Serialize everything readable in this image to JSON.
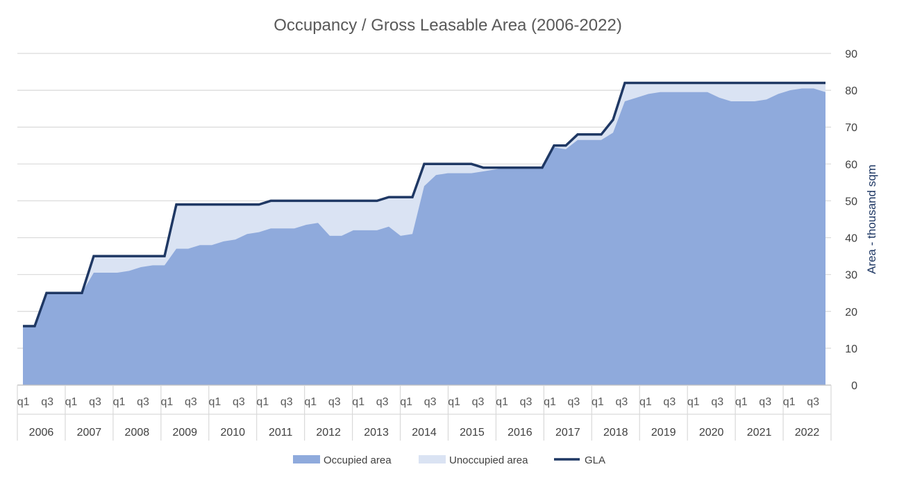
{
  "chart_data": {
    "type": "area",
    "title": "Occupancy / Gross Leasable Area (2006-2022)",
    "ylabel": "Area - thousand sqm",
    "xlabel": "",
    "ylim": [
      0,
      90
    ],
    "yticks": [
      0,
      10,
      20,
      30,
      40,
      50,
      60,
      70,
      80,
      90
    ],
    "y_axis_side": "right",
    "grid": true,
    "legend_position": "bottom",
    "years": [
      "2006",
      "2007",
      "2008",
      "2009",
      "2010",
      "2011",
      "2012",
      "2013",
      "2014",
      "2015",
      "2016",
      "2017",
      "2018",
      "2019",
      "2020",
      "2021",
      "2022"
    ],
    "quarter_tick_labels": [
      "q1",
      "q3"
    ],
    "quarters_per_year": 4,
    "series": [
      {
        "name": "Occupied area",
        "kind": "area",
        "color": "#8faadc",
        "values": [
          16,
          16,
          25,
          25,
          25,
          25,
          30.5,
          30.5,
          30.5,
          31,
          32,
          32.5,
          32.5,
          37,
          37,
          38,
          38,
          39,
          39.5,
          41,
          41.5,
          42.5,
          42.5,
          42.5,
          43.5,
          44,
          40.5,
          40.5,
          42,
          42,
          42,
          43,
          40.5,
          41,
          54,
          57,
          57.5,
          57.5,
          57.5,
          58,
          58.5,
          59,
          59,
          59,
          59,
          64.5,
          64,
          66.5,
          66.5,
          66.5,
          68.5,
          77,
          78,
          79,
          79.5,
          79.5,
          79.5,
          79.5,
          79.5,
          78,
          77,
          77,
          77,
          77.5,
          79,
          80,
          80.5,
          80.5,
          79.5
        ]
      },
      {
        "name": "Unoccupied area",
        "kind": "area",
        "color": "#dae3f3"
      },
      {
        "name": "GLA",
        "kind": "line",
        "color": "#1f3864",
        "values": [
          16,
          16,
          25,
          25,
          25,
          25,
          35,
          35,
          35,
          35,
          35,
          35,
          35,
          49,
          49,
          49,
          49,
          49,
          49,
          49,
          49,
          50,
          50,
          50,
          50,
          50,
          50,
          50,
          50,
          50,
          50,
          51,
          51,
          51,
          60,
          60,
          60,
          60,
          60,
          59,
          59,
          59,
          59,
          59,
          59,
          65,
          65,
          68,
          68,
          68,
          72,
          82,
          82,
          82,
          82,
          82,
          82,
          82,
          82,
          82,
          82,
          82,
          82,
          82,
          82,
          82,
          82,
          82,
          82
        ]
      }
    ]
  }
}
